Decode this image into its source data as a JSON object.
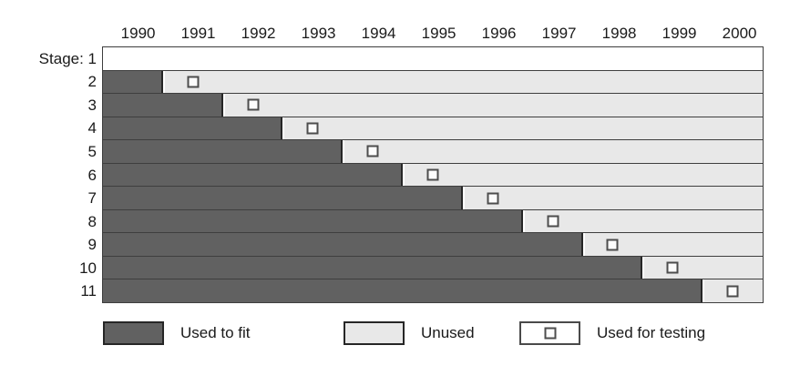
{
  "chart_data": {
    "type": "bar",
    "subtype": "horizontal-timeline-cross-validation",
    "title": "",
    "x_axis": {
      "ticks": [
        1990,
        1991,
        1992,
        1993,
        1994,
        1995,
        1996,
        1997,
        1998,
        1999,
        2000
      ],
      "range": [
        1989.4,
        2000.4
      ],
      "grid": false
    },
    "y_axis": {
      "description": "validation stage, one row per stage, stage 1 at top",
      "stage_count": 11
    },
    "stages": [
      {
        "stage": 1,
        "label": "Stage: 1",
        "fit_end": null,
        "test": null,
        "row_fill": "#ffffff"
      },
      {
        "stage": 2,
        "label": "2",
        "fit_end": 1990.4,
        "test": 1990.9,
        "row_fill": "#e8e8e8"
      },
      {
        "stage": 3,
        "label": "3",
        "fit_end": 1991.4,
        "test": 1991.9,
        "row_fill": "#e8e8e8"
      },
      {
        "stage": 4,
        "label": "4",
        "fit_end": 1992.4,
        "test": 1992.9,
        "row_fill": "#e8e8e8"
      },
      {
        "stage": 5,
        "label": "5",
        "fit_end": 1993.4,
        "test": 1993.9,
        "row_fill": "#e8e8e8"
      },
      {
        "stage": 6,
        "label": "6",
        "fit_end": 1994.4,
        "test": 1994.9,
        "row_fill": "#e8e8e8"
      },
      {
        "stage": 7,
        "label": "7",
        "fit_end": 1995.4,
        "test": 1995.9,
        "row_fill": "#e8e8e8"
      },
      {
        "stage": 8,
        "label": "8",
        "fit_end": 1996.4,
        "test": 1996.9,
        "row_fill": "#e8e8e8"
      },
      {
        "stage": 9,
        "label": "9",
        "fit_end": 1997.4,
        "test": 1997.9,
        "row_fill": "#e8e8e8"
      },
      {
        "stage": 10,
        "label": "10",
        "fit_end": 1998.4,
        "test": 1998.9,
        "row_fill": "#e8e8e8"
      },
      {
        "stage": 11,
        "label": "11",
        "fit_end": 1999.4,
        "test": 1999.9,
        "row_fill": "#e8e8e8"
      }
    ],
    "legend": [
      {
        "label": "Used to fit",
        "swatch": "dark-filled-rectangle",
        "color": "#616161"
      },
      {
        "label": "Unused",
        "swatch": "light-filled-rectangle",
        "color": "#e8e8e8"
      },
      {
        "label": "Used for testing",
        "swatch": "white-rectangle-with-square-marker",
        "color": "#ffffff"
      }
    ],
    "legend_position": "bottom",
    "colors": {
      "fit_bar": "#616161",
      "unused": "#e8e8e8",
      "row_border": "#3e3e3e",
      "marker_border": "#4d4d4d",
      "marker_fill": "#fcfcfc",
      "text": "#1a1a1a",
      "background": "#ffffff"
    }
  }
}
